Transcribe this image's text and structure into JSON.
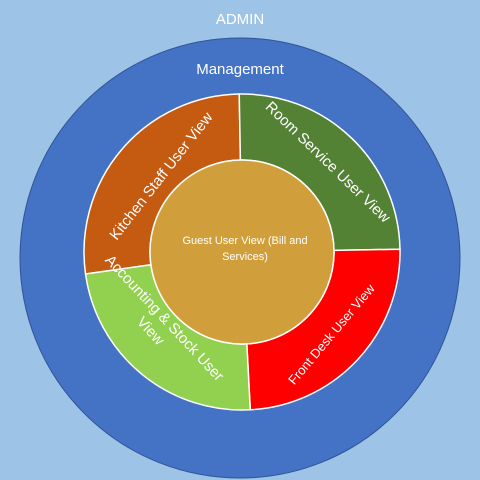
{
  "outer": {
    "label": "ADMIN",
    "color": "#9dc3e6"
  },
  "management": {
    "label": "Management",
    "color": "#4472c4",
    "stroke": "#2f5597"
  },
  "segments": [
    {
      "label": "Kitchen Staff User View",
      "color": "#c55a11"
    },
    {
      "label": "Room Service User View",
      "color": "#548235"
    },
    {
      "label": "Front Desk User View",
      "color": "#ff0000"
    },
    {
      "label": "Accounting & Stock User View",
      "color": "#92d050"
    }
  ],
  "center": {
    "line1": "Guest User View (Bill and",
    "line2": "Services)",
    "color": "#d09f3b"
  }
}
